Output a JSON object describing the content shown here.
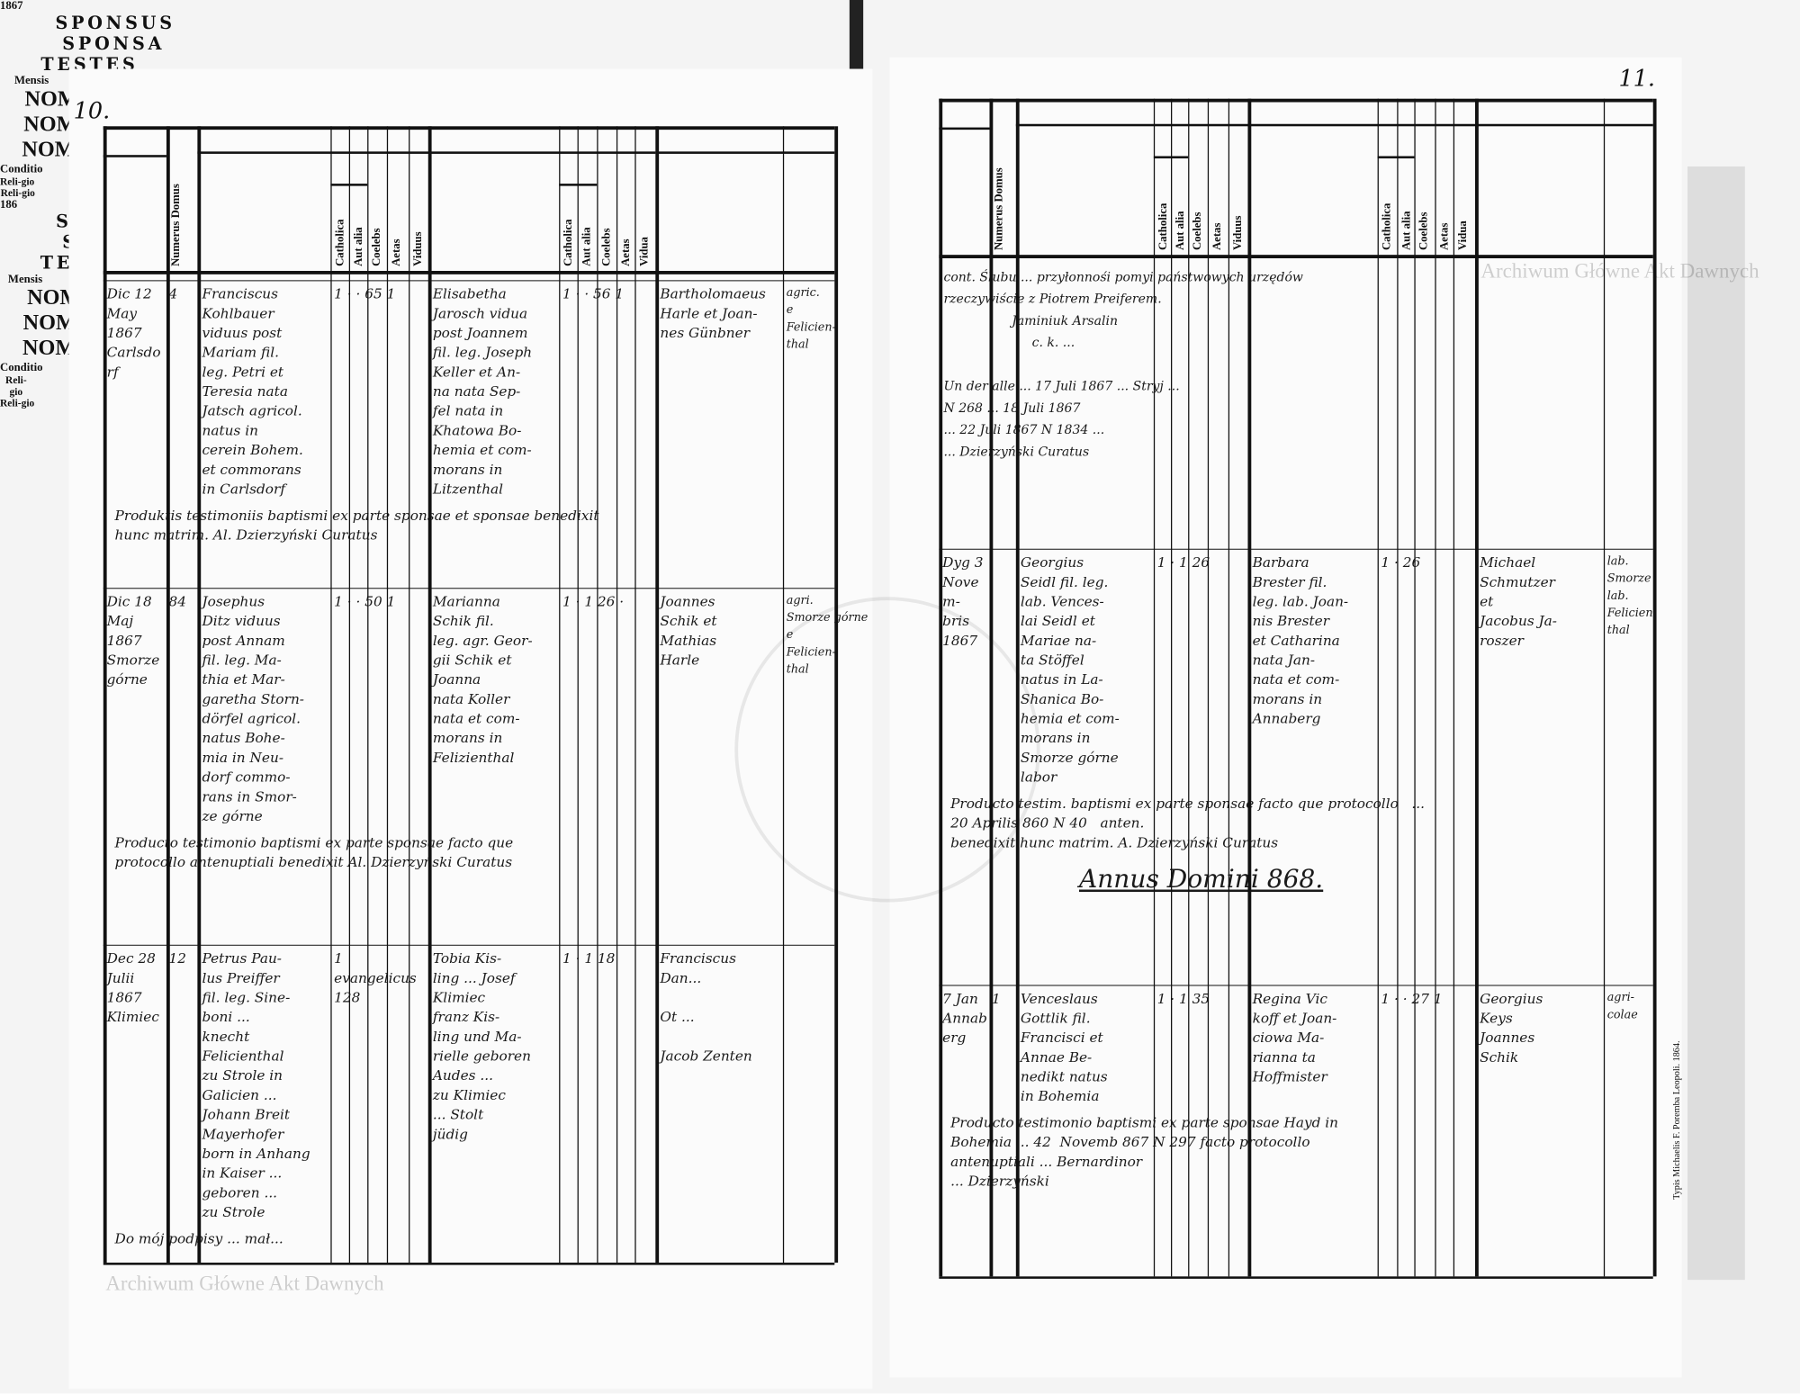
{
  "left_page": {
    "page_number": "10.",
    "year": "1867",
    "headers": {
      "sponsus": "SPONSUS",
      "sponsa": "SPONSA",
      "testes": "TESTES",
      "nomen": "NOMEN",
      "mensis": "Mensis",
      "numerus_domus": "Numerus Domus",
      "religio": "Reli-gio",
      "catholica": "Catholica",
      "aut_alia": "Aut alia",
      "coelebs": "Coelebs",
      "aetas": "Aetas",
      "viduus": "Viduus",
      "vidua": "Vidua",
      "conditio": "Conditio"
    },
    "entries": [
      {
        "mensis": "Dic 12\nMay\n1867\nCarlsdorf",
        "domus": "4",
        "sponsus": "Franciscus\nKohlbauer\nviduus post\nMariam fil.\nleg. Petri et\nTeresia nata\nJatsch agricol.\nnatus in\ncerein Bohem.\net commorans\nin Carlsdorf",
        "sponsus_nums": "1  ·  ·  65  1",
        "sponsa": "Elisabetha\nJarosch vidua\npost Joannem\nfil. leg. Joseph\nKeller et An-\nna nata Sep-\nfel nata in\nKhatowa Bo-\nhemia et com-\nmorans in\nLitzenthal",
        "sponsa_nums": "1  ·  ·  56  1",
        "testes": "Bartholomaeus\nHarle et Joan-\nnes Günbner",
        "conditio": "agric.\ne\nFelicien-\nthal",
        "note": "Produktis testimoniis baptismi ex parte sponsae et sponsae benedixit\nhunc matrim. Al. Dzierzyński Curatus"
      },
      {
        "mensis": "Dic 18\nMaj\n1867\nSmorze górne",
        "domus": "84",
        "sponsus": "Josephus\nDitz viduus\npost Annam\nfil. leg. Ma-\nthia et Mar-\ngaretha Storn-\ndörfel agricol.\nnatus Bohe-\nmia in Neu-\ndorf commo-\nrans in Smor-\nze górne",
        "sponsus_nums": "1  ·  ·  50  1",
        "sponsa": "Marianna\nSchik fil.\nleg. agr. Geor-\ngii Schik et\nJoanna\nnata Koller\nnata et com-\nmorans in\nFelizienthal",
        "sponsa_nums": "1  ·  1  26  ·",
        "testes": "Joannes\nSchik et\nMathias\nHarle",
        "conditio": "agri.\nSmorze górne\ne\nFelicien-\nthal",
        "note": "Producto testimonio baptismi ex parte sponsae facto que\nprotocollo antenuptiali benedixit Al. Dzierzyński Curatus"
      },
      {
        "mensis": "Dec 28\nJulii\n1867\nKlimiec",
        "domus": "12",
        "sponsus": "Petrus Pau-\nlus Preiffer\nfil. leg. Sine-\nboni ...\nknecht\nFelicienthal\nzu Strole in\nGalicien ...\nJohann Breit\nMayerhofer\nborn in Anhang\nin Kaiser ...\ngeboren ...\nzu Strole",
        "sponsus_nums": "1  evangelicus  128",
        "sponsa": "Tobia Kis-\nling ... Josef\nKlimiec\nfranz Kis-\nling und Ma-\nrielle geboren\nAudes ...\nzu Klimiec\n... Stolt\njüdig",
        "sponsa_nums": "1  ·  1  18",
        "testes": "Franciscus Dan...\n\nOt ...\n\nJacob Zenten",
        "conditio": "",
        "note": "Do mój podpisy ... mał..."
      }
    ]
  },
  "right_page": {
    "page_number": "11.",
    "year": "186",
    "headers": {
      "sponsus": "SPONSUS",
      "sponsa": "SPONSA",
      "testes": "TESTES",
      "nomen": "NOMEN",
      "mensis": "Mensis",
      "numerus_domus": "Numerus Domus",
      "religio": "Reli-gio",
      "catholica": "Catholica",
      "aut_alia": "Aut alia",
      "coelebs": "Coelebs",
      "aetas": "Aetas",
      "viduus": "Viduus",
      "vidua": "Vidua",
      "conditio": "Conditio"
    },
    "top_note": "cont. Ślubu ... przyłonnośi pomyi państwowych urzędów\nrzeczywiście z Piotrem Preiferem.\n                 Jaminiuk Arsalin\n                      c. k. ...\n\nUn der alle ... 17 Juli 1867 ... Stryj ...\nN 268 ... 18 Juli 1867\n... 22 Juli 1867 N 1834 ...\n... Dzierzyński Curatus",
    "entries": [
      {
        "mensis": "Dyg 3\nNovem-\nbris\n1867",
        "domus": "",
        "sponsus": "Georgius\nSeidl fil. leg.\nlab. Vences-\nlai Seidl et\nMariae na-\nta Stöffel\nnatus in La-\nShanica Bo-\nhemia et com-\nmorans in\nSmorze górne\nlabor",
        "sponsus_nums": "1  ·  1  26",
        "sponsa": "Barbara\nBrester fil.\nleg. lab. Joan-\nnis Brester\net Catharina\nnata Jan-\nnata et com-\nmorans in\nAnnaberg",
        "sponsa_nums": "1  ·  26",
        "testes": "Michael\nSchmutzer\net\nJacobus Ja-\nroszer",
        "conditio": "lab.\nSmorze\nlab.\nFelicien-\nthal",
        "note": "Producto testim. baptismi ex parte sponsae facto que protocollo   ...\n20 Aprilis 860 N 40   anten.\nbenedixit hunc matrim. A. Dzierzyński Curatus"
      },
      {
        "mensis": "7 Jan\nAnnaberg",
        "domus": "1",
        "sponsus": "Venceslaus\nGottlik fil.\nFrancisci et\nAnnae Be-\nnedikt natus\nin Bohemia",
        "sponsus_nums": "1  ·  1  35",
        "sponsa": "Regina Vic\nkoff et Joan-\nciowa Ma-\nrianna ta\nHoffmister",
        "sponsa_nums": "1  ·  ·  27  1",
        "testes": "Georgius\nKeys\nJoannes\nSchik",
        "conditio": "agri-\ncolae",
        "note": "Producto testimonio baptismi ex parte sponsae Hayd in\nBohemia ... 42  Novemb 867 N 297 facto protocollo\nantenuptiali ... Bernardinor\n... Dzierzyński"
      }
    ],
    "section_title": "Annus Domini 868.",
    "printer": "Typis Michaelis F. Poremba Leopoli. 1864."
  },
  "watermark": "Archiwum Główne Akt Dawnych"
}
